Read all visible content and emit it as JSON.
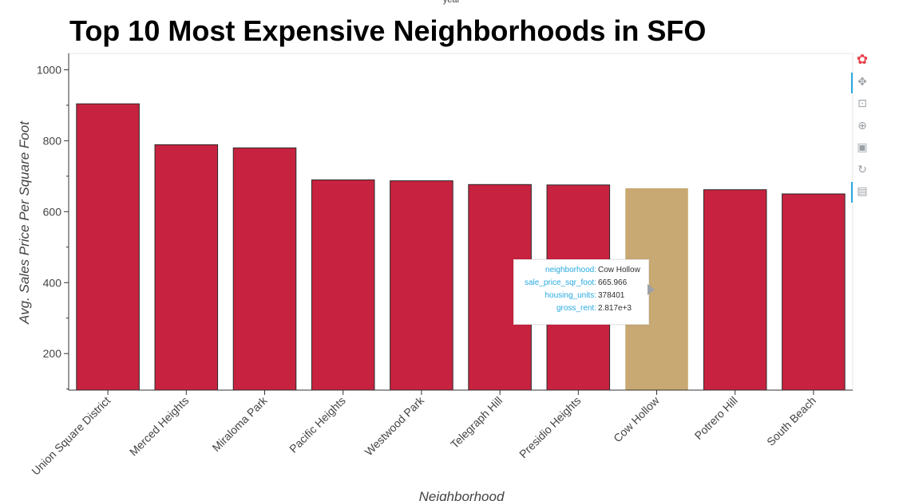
{
  "header": {
    "cutoff_text": "year"
  },
  "chart_data": {
    "type": "bar",
    "title": "Top 10 Most Expensive Neighborhoods in SFO",
    "xlabel": "Neighborhood",
    "ylabel": "Avg. Sales Price Per Square Foot",
    "categories": [
      "Union Square District",
      "Merced Heights",
      "Miraloma Park",
      "Pacific Heights",
      "Westwood Park",
      "Telegraph Hill",
      "Presidio Heights",
      "Cow Hollow",
      "Potrero Hill",
      "South Beach"
    ],
    "values": [
      903.99,
      788.84,
      779.81,
      689.56,
      687.09,
      676.51,
      675.35,
      665.97,
      662.01,
      650.12
    ],
    "yticks": [
      200,
      400,
      600,
      800,
      1000
    ],
    "ylim": [
      97,
      1046
    ],
    "grid": false,
    "bar_color": "#c7223f",
    "highlight_color": "#c8a973",
    "highlight_index": 7
  },
  "tooltip": {
    "rows": [
      {
        "key": "neighborhood:",
        "value": "Cow Hollow"
      },
      {
        "key": "sale_price_sqr_foot:",
        "value": "665.966"
      },
      {
        "key": "housing_units:",
        "value": "378401"
      },
      {
        "key": "gross_rent:",
        "value": "2.817e+3"
      }
    ]
  },
  "toolbar": {
    "items": [
      {
        "name": "bokeh-logo-icon",
        "glyph": "✿"
      },
      {
        "name": "pan-tool-icon",
        "glyph": "✥"
      },
      {
        "name": "box-zoom-tool-icon",
        "glyph": "⊡"
      },
      {
        "name": "wheel-zoom-tool-icon",
        "glyph": "⊕"
      },
      {
        "name": "save-tool-icon",
        "glyph": "▣"
      },
      {
        "name": "reset-tool-icon",
        "glyph": "↻"
      },
      {
        "name": "hover-tool-icon",
        "glyph": "▤"
      }
    ]
  }
}
